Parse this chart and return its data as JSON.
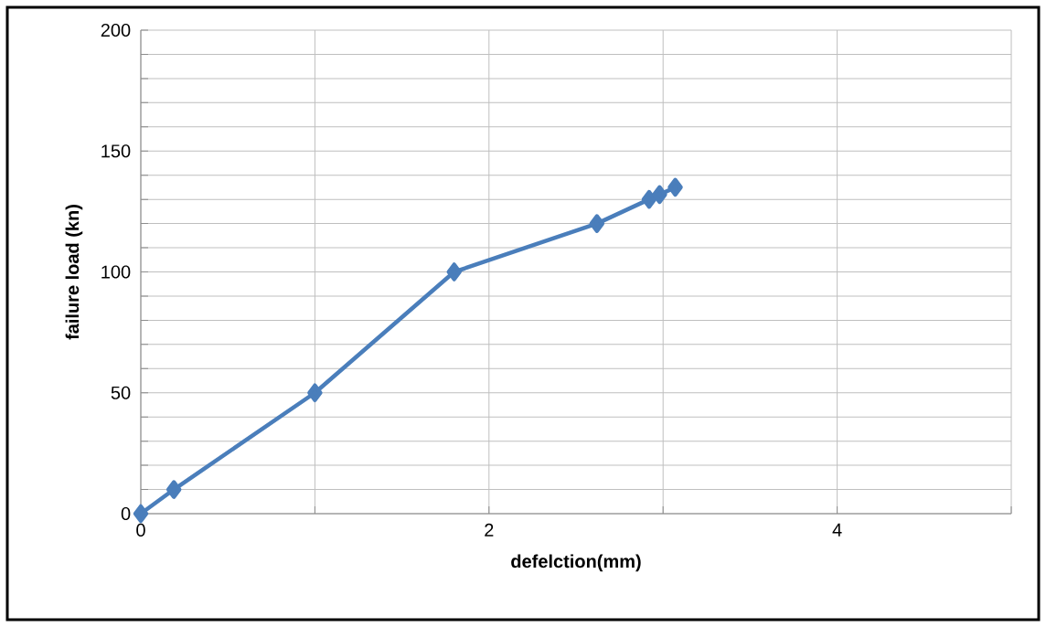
{
  "chart_data": {
    "type": "line",
    "xlabel": "defelction(mm)",
    "ylabel": "failure load (kn)",
    "x": [
      0,
      0.19,
      1.0,
      1.8,
      2.62,
      2.92,
      2.98,
      3.07
    ],
    "series": [
      {
        "color": "#4a7ebb",
        "values": [
          0,
          10,
          50,
          100,
          120,
          130,
          132,
          135
        ]
      }
    ],
    "xlim": [
      0,
      5
    ],
    "ylim": [
      0,
      200
    ],
    "xticks": [
      0,
      {
        "value": 1,
        "label": null
      },
      2,
      {
        "value": 3,
        "label": null
      },
      4,
      {
        "value": 5,
        "label": null
      }
    ],
    "yticks": [
      0,
      {
        "value": 10,
        "label": null
      },
      {
        "value": 20,
        "label": null
      },
      {
        "value": 30,
        "label": null
      },
      {
        "value": 40,
        "label": null
      },
      50,
      {
        "value": 60,
        "label": null
      },
      {
        "value": 70,
        "label": null
      },
      {
        "value": 80,
        "label": null
      },
      {
        "value": 90,
        "label": null
      },
      100,
      {
        "value": 110,
        "label": null
      },
      {
        "value": 120,
        "label": null
      },
      {
        "value": 130,
        "label": null
      },
      {
        "value": 140,
        "label": null
      },
      150,
      {
        "value": 160,
        "label": null
      },
      {
        "value": 170,
        "label": null
      },
      {
        "value": 180,
        "label": null
      },
      {
        "value": 190,
        "label": null
      },
      200
    ],
    "grid": true,
    "marker": "diamond",
    "line_style": "solid"
  }
}
